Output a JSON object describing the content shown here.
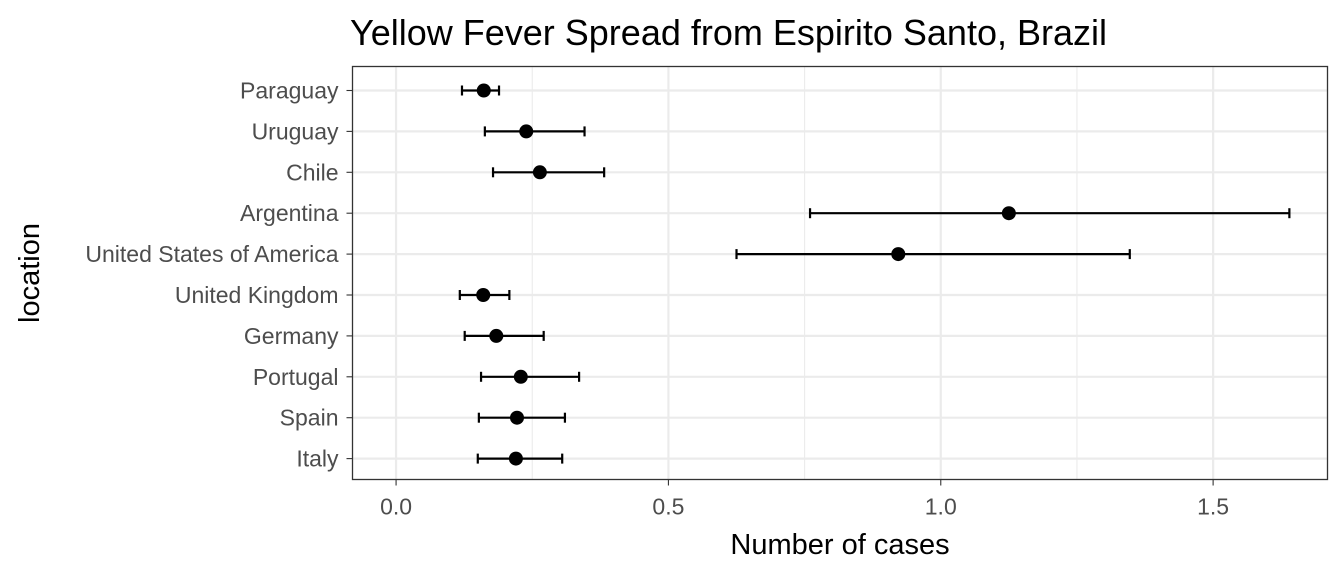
{
  "chart_data": {
    "type": "scatter",
    "title": "Yellow Fever Spread from Espirito Santo, Brazil",
    "xlabel": "Number of cases",
    "ylabel": "location",
    "xlim": [
      -0.08,
      1.71
    ],
    "x_ticks": [
      0.0,
      0.5,
      1.0,
      1.5
    ],
    "x_tick_labels": [
      "0.0",
      "0.5",
      "1.0",
      "1.5"
    ],
    "grid": true,
    "categories": [
      "Paraguay",
      "Uruguay",
      "Chile",
      "Argentina",
      "United States of America",
      "United Kingdom",
      "Germany",
      "Portugal",
      "Spain",
      "Italy"
    ],
    "series": [
      {
        "values": [
          0.161,
          0.239,
          0.264,
          1.125,
          0.922,
          0.16,
          0.184,
          0.229,
          0.222,
          0.22
        ],
        "lower": [
          0.121,
          0.163,
          0.178,
          0.76,
          0.625,
          0.117,
          0.126,
          0.156,
          0.152,
          0.15
        ],
        "upper": [
          0.189,
          0.346,
          0.382,
          1.64,
          1.347,
          0.208,
          0.271,
          0.336,
          0.31,
          0.305
        ]
      }
    ],
    "colors": {
      "point": "#000000",
      "errorbar": "#000000",
      "grid": "#ebebeb",
      "panel_border": "#333333",
      "tick_text": "#4d4d4d"
    }
  }
}
